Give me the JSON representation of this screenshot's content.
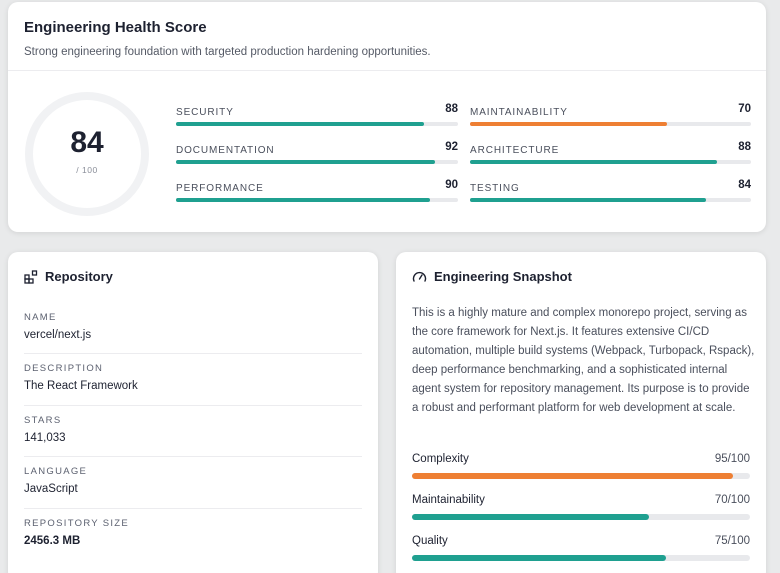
{
  "health": {
    "title": "Engineering Health Score",
    "subtitle": "Strong engineering foundation with targeted production hardening opportunities.",
    "score": "84",
    "score_value": 84,
    "out_of": "/ 100",
    "ring_color": "#f1f2f4",
    "metrics": [
      {
        "label": "SECURITY",
        "value": "88",
        "pct": 88,
        "color": "#1fa090"
      },
      {
        "label": "MAINTAINABILITY",
        "value": "70",
        "pct": 70,
        "color": "#ee7f33"
      },
      {
        "label": "DOCUMENTATION",
        "value": "92",
        "pct": 92,
        "color": "#1fa090"
      },
      {
        "label": "ARCHITECTURE",
        "value": "88",
        "pct": 88,
        "color": "#1fa090"
      },
      {
        "label": "PERFORMANCE",
        "value": "90",
        "pct": 90,
        "color": "#1fa090"
      },
      {
        "label": "TESTING",
        "value": "84",
        "pct": 84,
        "color": "#1fa090"
      }
    ]
  },
  "repository": {
    "title": "Repository",
    "icon": "grid-squares-icon",
    "fields": [
      {
        "label": "NAME",
        "value": "vercel/next.js"
      },
      {
        "label": "DESCRIPTION",
        "value": "The React Framework"
      },
      {
        "label": "STARS",
        "value": "141,033"
      },
      {
        "label": "LANGUAGE",
        "value": "JavaScript"
      },
      {
        "label": "REPOSITORY SIZE",
        "value": "2456.3 MB"
      }
    ]
  },
  "snapshot": {
    "title": "Engineering Snapshot",
    "icon": "gauge-icon",
    "description": "This is a highly mature and complex monorepo project, serving as the core framework for Next.js. It features extensive CI/CD automation, multiple build systems (Webpack, Turbopack, Rspack), deep performance benchmarking, and a sophisticated internal agent system for repository management. Its purpose is to provide a robust and performant platform for web development at scale.",
    "bars": [
      {
        "label": "Complexity",
        "value": "95/100",
        "pct": 95,
        "color": "#ee7f33"
      },
      {
        "label": "Maintainability",
        "value": "70/100",
        "pct": 70,
        "color": "#1fa090"
      },
      {
        "label": "Quality",
        "value": "75/100",
        "pct": 75,
        "color": "#1fa090"
      }
    ]
  }
}
